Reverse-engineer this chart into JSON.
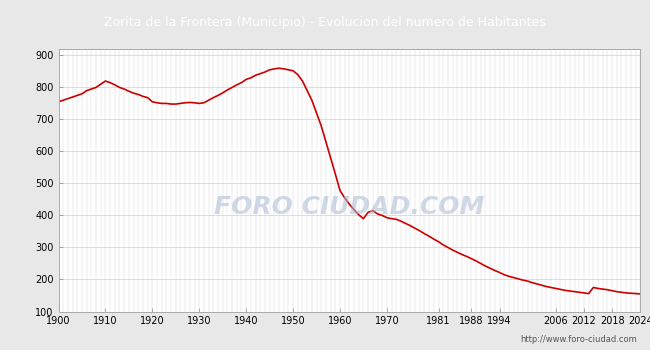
{
  "title": "Zorita de la Frontera (Municipio) - Evolucion del numero de Habitantes",
  "title_color": "white",
  "title_bg_color": "#4472C4",
  "bg_color": "#E8E8E8",
  "plot_bg_color": "white",
  "line_color": "#CC0000",
  "fill_color": "#FFCCCC",
  "watermark_url": "http://www.foro-ciudad.com",
  "years": [
    1900,
    1901,
    1902,
    1903,
    1904,
    1905,
    1906,
    1907,
    1908,
    1909,
    1910,
    1911,
    1912,
    1913,
    1914,
    1915,
    1916,
    1917,
    1918,
    1919,
    1920,
    1921,
    1922,
    1923,
    1924,
    1925,
    1926,
    1927,
    1928,
    1929,
    1930,
    1931,
    1932,
    1933,
    1934,
    1935,
    1936,
    1937,
    1938,
    1939,
    1940,
    1941,
    1942,
    1943,
    1944,
    1945,
    1946,
    1947,
    1948,
    1949,
    1950,
    1951,
    1952,
    1953,
    1954,
    1955,
    1956,
    1957,
    1958,
    1959,
    1960,
    1961,
    1962,
    1963,
    1964,
    1965,
    1966,
    1967,
    1968,
    1969,
    1970,
    1971,
    1972,
    1973,
    1974,
    1975,
    1976,
    1977,
    1978,
    1979,
    1980,
    1981,
    1982,
    1983,
    1984,
    1985,
    1986,
    1987,
    1988,
    1989,
    1990,
    1991,
    1992,
    1993,
    1994,
    1995,
    1996,
    1997,
    1998,
    1999,
    2000,
    2001,
    2002,
    2003,
    2004,
    2005,
    2006,
    2007,
    2008,
    2009,
    2010,
    2011,
    2012,
    2013,
    2014,
    2015,
    2016,
    2017,
    2018,
    2019,
    2020,
    2021,
    2022,
    2023,
    2024
  ],
  "population": [
    755,
    760,
    765,
    770,
    775,
    780,
    790,
    795,
    800,
    810,
    820,
    815,
    808,
    800,
    795,
    788,
    782,
    778,
    772,
    768,
    755,
    752,
    750,
    750,
    748,
    748,
    750,
    752,
    753,
    752,
    750,
    752,
    760,
    768,
    775,
    783,
    792,
    800,
    808,
    815,
    825,
    830,
    838,
    843,
    848,
    855,
    858,
    860,
    858,
    855,
    852,
    840,
    820,
    790,
    760,
    720,
    680,
    630,
    580,
    530,
    478,
    455,
    435,
    418,
    402,
    390,
    410,
    415,
    405,
    400,
    393,
    390,
    388,
    382,
    375,
    368,
    360,
    352,
    343,
    335,
    326,
    318,
    308,
    300,
    292,
    285,
    278,
    272,
    265,
    258,
    250,
    242,
    235,
    228,
    222,
    215,
    210,
    206,
    202,
    198,
    195,
    190,
    186,
    182,
    178,
    175,
    172,
    169,
    166,
    164,
    162,
    160,
    158,
    156,
    175,
    172,
    170,
    168,
    165,
    162,
    160,
    158,
    157,
    156,
    155
  ],
  "xticks": [
    1900,
    1910,
    1920,
    1930,
    1940,
    1950,
    1960,
    1970,
    1981,
    1988,
    1994,
    2006,
    2012,
    2018,
    2024
  ],
  "yticks": [
    100,
    200,
    300,
    400,
    500,
    600,
    700,
    800,
    900
  ],
  "ylim": [
    100,
    920
  ],
  "xlim": [
    1900,
    2024
  ],
  "title_fontsize": 9,
  "tick_fontsize": 7
}
